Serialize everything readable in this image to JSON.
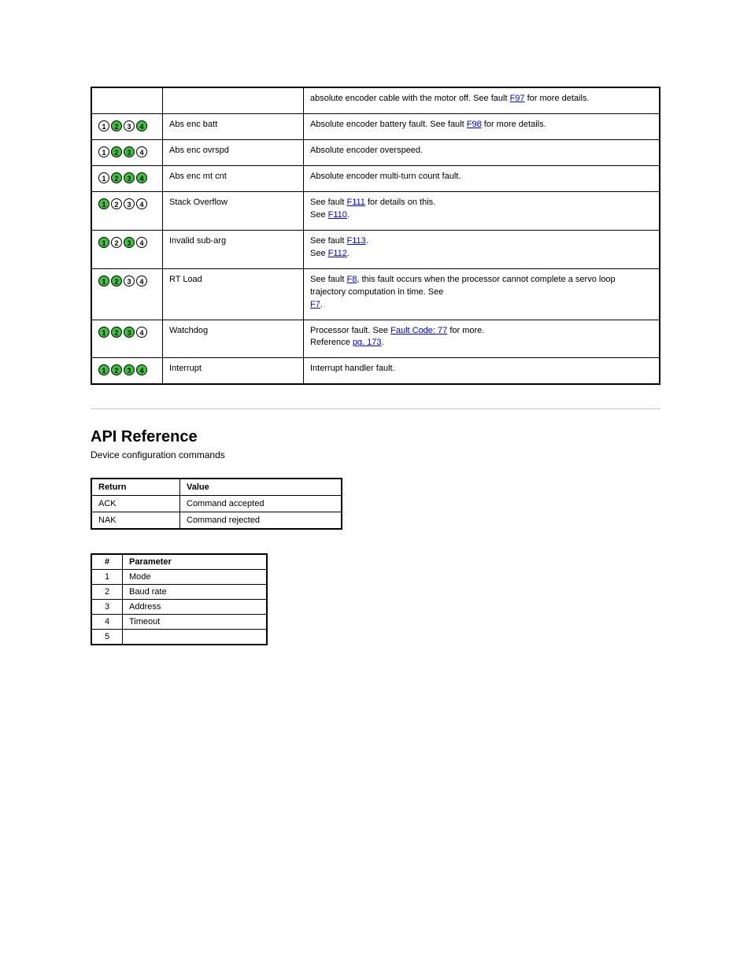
{
  "colors": {
    "led_on": "#39c639",
    "led_off": "#ffffff",
    "link": "#0000ee",
    "border": "#000000",
    "rule": "#c8c8c8",
    "bg": "#ffffff",
    "text": "#000000"
  },
  "led_rows": [
    {
      "leds": [],
      "mode": "",
      "desc_pre": "absolute encoder cable with the motor off. See fault ",
      "link": "F97",
      "desc_post": " for more details."
    },
    {
      "leds": [
        "off",
        "on",
        "off",
        "on"
      ],
      "mode": "Abs enc batt",
      "desc_pre": "Absolute encoder battery fault. See fault ",
      "link": "F98",
      "desc_post": " for more details."
    },
    {
      "leds": [
        "off",
        "on",
        "on",
        "off"
      ],
      "mode": "Abs enc ovrspd",
      "desc_pre": "Absolute encoder overspeed.",
      "link": "",
      "desc_post": ""
    },
    {
      "leds": [
        "off",
        "on",
        "on",
        "on"
      ],
      "mode": "Abs enc mt cnt",
      "desc_pre": "Absolute encoder multi-turn count fault.",
      "link": "",
      "desc_post": ""
    },
    {
      "leds": [
        "on",
        "off",
        "off",
        "off"
      ],
      "mode": "Stack Overflow",
      "desc_pre": "See fault ",
      "link": "F111",
      "desc_post": " for details on this.",
      "extra_pre": "See ",
      "extra_link": "F110",
      "extra_post": "."
    },
    {
      "leds": [
        "on",
        "off",
        "on",
        "off"
      ],
      "mode": "Invalid sub-arg",
      "desc_pre": "See fault ",
      "link": "F113",
      "desc_post": ".",
      "extra_pre": "See ",
      "extra_link": "F112",
      "extra_post": "."
    },
    {
      "leds": [
        "on",
        "on",
        "off",
        "off"
      ],
      "mode": "RT Load",
      "desc_pre": "See fault ",
      "link": "F8",
      "desc_post": ", this fault occurs when the processor cannot complete a servo loop trajectory computation in time. See ",
      "extra_link": "F7",
      "extra_post": "."
    },
    {
      "leds": [
        "on",
        "on",
        "on",
        "off"
      ],
      "mode": "Watchdog",
      "desc_pre": "Processor fault. See ",
      "link": "Fault Code: 77",
      "desc_post": " for more. ",
      "extra_pre": "Reference ",
      "extra_link": "pg. 173",
      "extra_post": "."
    },
    {
      "leds": [
        "on",
        "on",
        "on",
        "on"
      ],
      "mode": "Interrupt",
      "desc_pre": "Interrupt handler fault.",
      "link": "",
      "desc_post": ""
    }
  ],
  "api": {
    "heading": "API Reference",
    "sub": "Device configuration commands"
  },
  "rv": {
    "headers": [
      "Return",
      "Value"
    ],
    "rows": [
      [
        "ACK",
        "Command accepted"
      ],
      [
        "NAK",
        "Command rejected"
      ]
    ]
  },
  "params": {
    "headers": [
      "#",
      "Parameter"
    ],
    "rows": [
      [
        "1",
        "Mode"
      ],
      [
        "2",
        "Baud rate"
      ],
      [
        "3",
        "Address"
      ],
      [
        "4",
        "Timeout"
      ],
      [
        "5",
        ""
      ]
    ]
  }
}
